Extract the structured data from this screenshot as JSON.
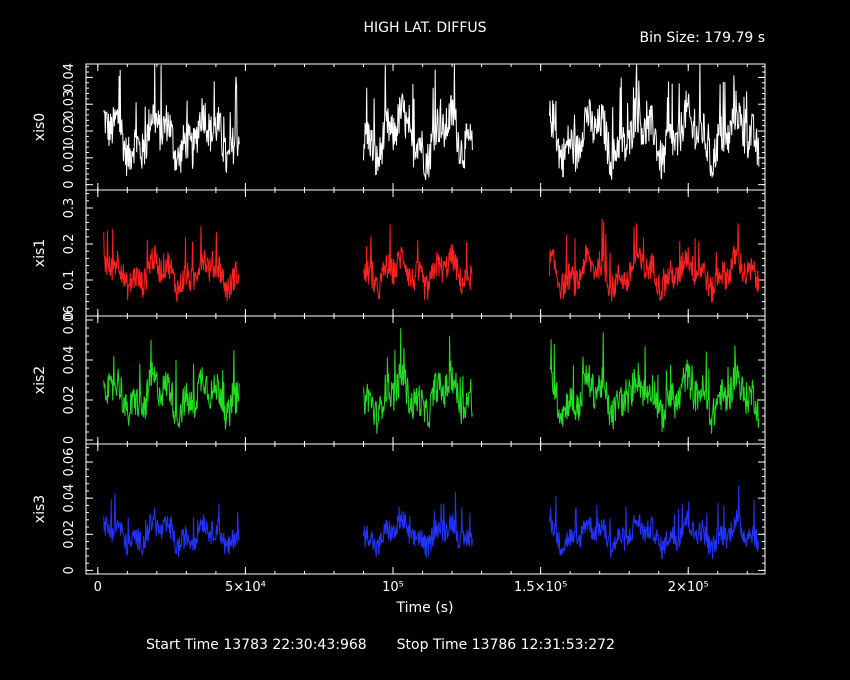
{
  "header": {
    "title": "HIGH LAT. DIFFUS",
    "bin_size": "Bin Size: 179.79 s"
  },
  "footer": {
    "start_time": "Start Time 13783 22:30:43:968",
    "stop_time": "Stop Time 13786 12:31:53:272"
  },
  "chart_data": {
    "type": "line",
    "xlabel": "Time (s)",
    "xlim": [
      -4000,
      226000
    ],
    "x_ticks": [
      0,
      50000,
      100000,
      150000,
      200000
    ],
    "x_tick_labels": [
      "0",
      "5×10⁴",
      "10⁵",
      "1.5×10⁵",
      "2×10⁵"
    ],
    "segments": [
      [
        2000,
        48000
      ],
      [
        90000,
        127000
      ],
      [
        153000,
        224000
      ]
    ],
    "panels": [
      {
        "name": "xis0",
        "color": "#ffffff",
        "ylim": [
          -0.002,
          0.045
        ],
        "y_ticks": [
          0,
          0.01,
          0.02,
          0.03,
          0.04
        ],
        "y_tick_labels": [
          "0",
          "0.01",
          "0.02",
          "0.03",
          "0.04"
        ],
        "mean": 0.018,
        "spread": 0.011
      },
      {
        "name": "xis1",
        "color": "#ff2020",
        "ylim": [
          0.0,
          0.35
        ],
        "y_ticks": [
          0,
          0.1,
          0.2,
          0.3
        ],
        "y_tick_labels": [
          "0",
          "0.1",
          "0.2",
          "0.3"
        ],
        "mean": 0.12,
        "spread": 0.055
      },
      {
        "name": "xis2",
        "color": "#22dd22",
        "ylim": [
          -0.002,
          0.062
        ],
        "y_ticks": [
          0,
          0.02,
          0.04,
          0.06
        ],
        "y_tick_labels": [
          "0",
          "0.02",
          "0.04",
          "0.06"
        ],
        "mean": 0.022,
        "spread": 0.012
      },
      {
        "name": "xis3",
        "color": "#2233ff",
        "ylim": [
          -0.002,
          0.07
        ],
        "y_ticks": [
          0,
          0.02,
          0.04,
          0.06
        ],
        "y_tick_labels": [
          "0",
          "0.02",
          "0.04",
          "0.06"
        ],
        "mean": 0.02,
        "spread": 0.009
      }
    ]
  }
}
